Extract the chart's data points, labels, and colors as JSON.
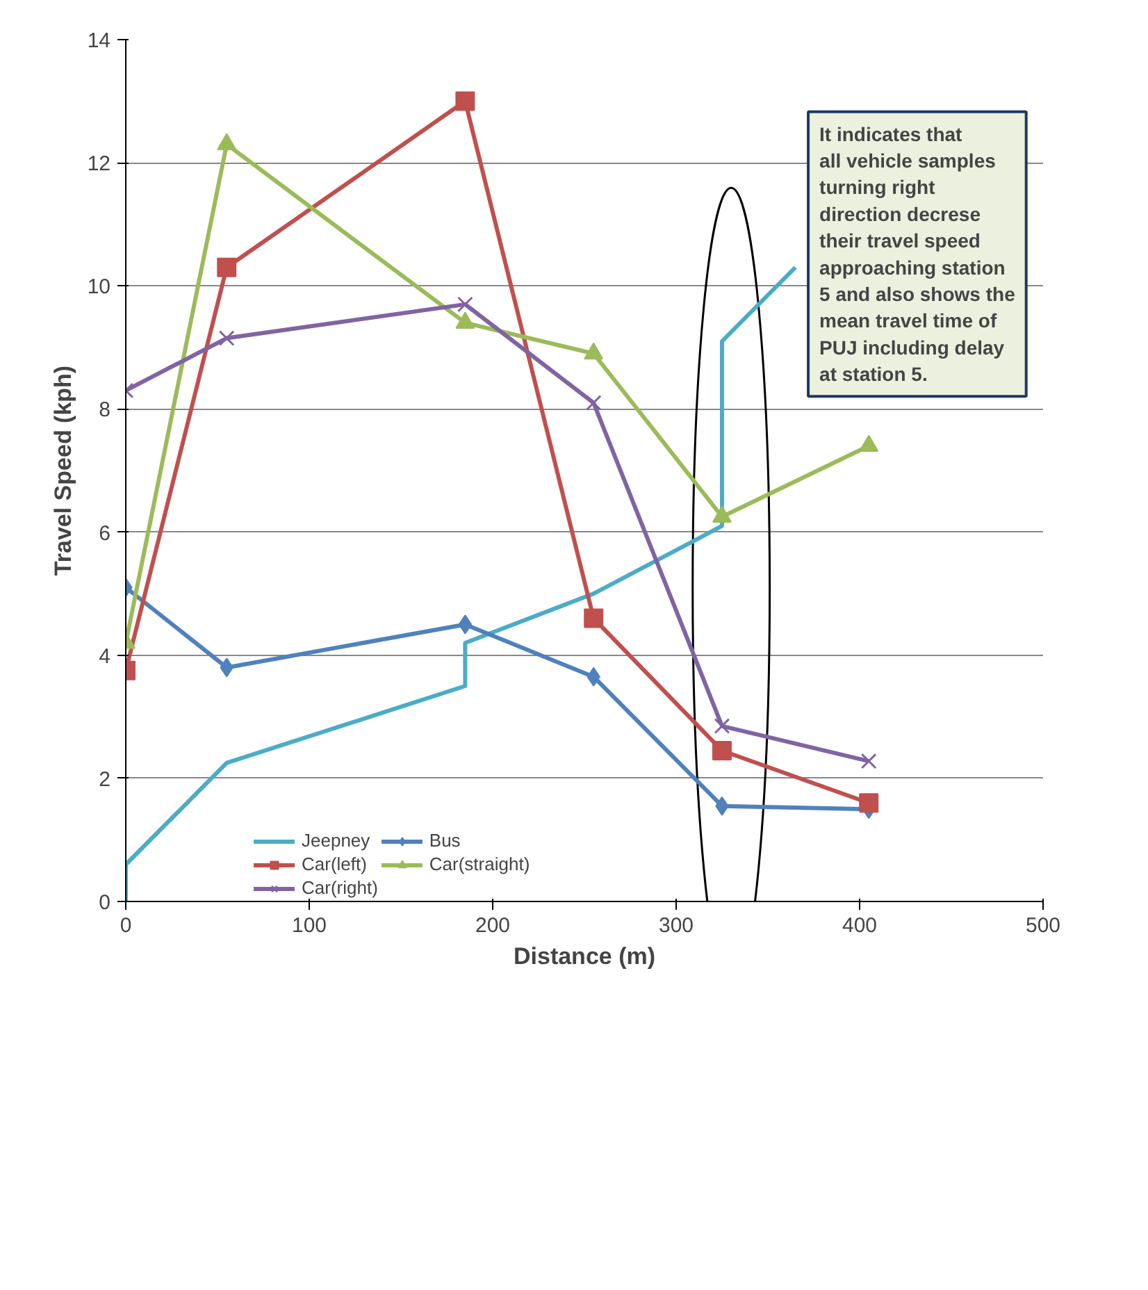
{
  "chart_data": {
    "type": "line",
    "xlabel": "Distance (m)",
    "ylabel": "Travel Speed (kph)",
    "xlim": [
      0,
      500
    ],
    "xticks": [
      0,
      100,
      200,
      300,
      400,
      500
    ],
    "ylim": [
      0,
      14
    ],
    "yticks": [
      0,
      2,
      4,
      6,
      8,
      10,
      12,
      14
    ],
    "grid": "y",
    "legend": "bottom",
    "line_style": "solid",
    "series": [
      {
        "name": "Jeepney",
        "color": "#4bacc6",
        "marker": "none",
        "x": [
          0,
          0,
          55,
          185,
          185,
          255,
          325,
          325,
          365
        ],
        "values": [
          0,
          0.6,
          2.25,
          3.5,
          4.2,
          5.0,
          6.1,
          9.1,
          10.3
        ]
      },
      {
        "name": "Bus",
        "color": "#4f81bd",
        "marker": "diamond",
        "x": [
          0,
          55,
          185,
          255,
          325,
          405
        ],
        "values": [
          5.1,
          3.8,
          4.5,
          3.65,
          1.55,
          1.5
        ]
      },
      {
        "name": "Car(left)",
        "color": "#c0504d",
        "marker": "square",
        "x": [
          0,
          55,
          185,
          255,
          325,
          405
        ],
        "values": [
          3.75,
          10.3,
          13.0,
          4.6,
          2.45,
          1.6
        ]
      },
      {
        "name": "Car(straight)",
        "color": "#9bbb59",
        "marker": "triangle",
        "x": [
          0,
          55,
          185,
          255,
          325,
          405
        ],
        "values": [
          4.2,
          12.3,
          9.4,
          8.9,
          6.25,
          7.4
        ]
      },
      {
        "name": "Car(right)",
        "color": "#8064a2",
        "marker": "cross",
        "x": [
          0,
          55,
          185,
          255,
          325,
          405
        ],
        "values": [
          8.3,
          9.15,
          9.7,
          8.1,
          2.85,
          2.28
        ]
      }
    ],
    "annotations": [
      "It indicates that all vehicle samples turning right direction decrese their travel speed approaching station 5 and also shows the mean travel time  of PUJ including delay at station 5."
    ]
  }
}
